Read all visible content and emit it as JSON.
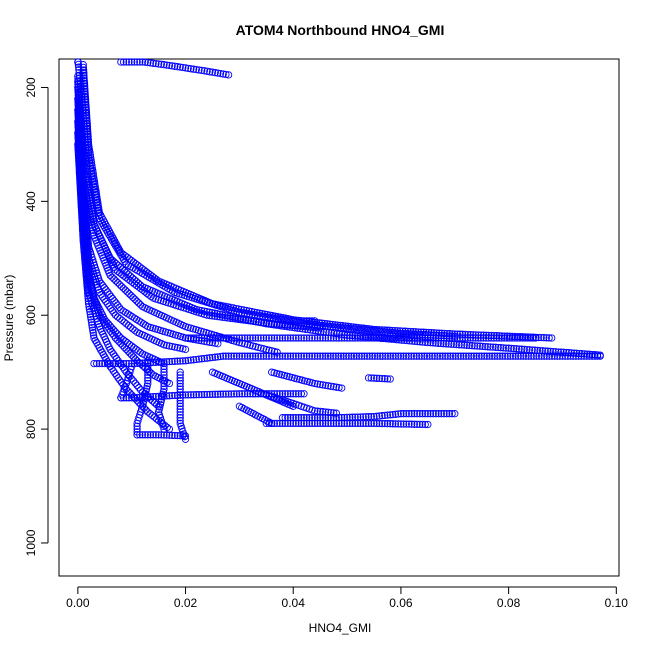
{
  "chart_data": {
    "type": "scatter",
    "title": "ATOM4 Northbound HNO4_GMI",
    "xlabel": "HNO4_GMI",
    "ylabel": "Pressure (mbar)",
    "xlim": [
      -0.0035,
      0.1005
    ],
    "ylim": [
      1058,
      150
    ],
    "y_reversed": true,
    "x_ticks": [
      0.0,
      0.02,
      0.04,
      0.06,
      0.08,
      0.1
    ],
    "x_tick_labels": [
      "0.00",
      "0.02",
      "0.04",
      "0.06",
      "0.08",
      "0.10"
    ],
    "y_ticks": [
      200,
      400,
      600,
      800,
      1000
    ],
    "y_tick_labels": [
      "200",
      "400",
      "600",
      "800",
      "1000"
    ],
    "grid": false,
    "legend": "none",
    "marker": "open-circle",
    "color": "#0000ff",
    "series": [
      {
        "values": [
          [
            0.0,
            150
          ],
          [
            0.001,
            250
          ],
          [
            0.002,
            380
          ],
          [
            0.003,
            440
          ],
          [
            0.006,
            500
          ],
          [
            0.012,
            550
          ],
          [
            0.022,
            590
          ],
          [
            0.035,
            615
          ],
          [
            0.05,
            635
          ],
          [
            0.065,
            648
          ],
          [
            0.08,
            658
          ],
          [
            0.097,
            670
          ]
        ]
      },
      {
        "values": [
          [
            0.001,
            160
          ],
          [
            0.002,
            300
          ],
          [
            0.004,
            420
          ],
          [
            0.008,
            490
          ],
          [
            0.015,
            540
          ],
          [
            0.025,
            580
          ],
          [
            0.04,
            608
          ],
          [
            0.055,
            625
          ],
          [
            0.07,
            633
          ],
          [
            0.088,
            640
          ]
        ]
      },
      {
        "values": [
          [
            0.001,
            170
          ],
          [
            0.002,
            320
          ],
          [
            0.004,
            430
          ],
          [
            0.009,
            510
          ],
          [
            0.018,
            560
          ],
          [
            0.03,
            595
          ],
          [
            0.045,
            618
          ],
          [
            0.06,
            632
          ],
          [
            0.07,
            637
          ]
        ]
      },
      {
        "values": [
          [
            0.0,
            180
          ],
          [
            0.001,
            340
          ],
          [
            0.003,
            440
          ],
          [
            0.007,
            520
          ],
          [
            0.014,
            570
          ],
          [
            0.024,
            600
          ],
          [
            0.036,
            615
          ],
          [
            0.045,
            622
          ]
        ]
      },
      {
        "values": [
          [
            0.0,
            200
          ],
          [
            0.001,
            360
          ],
          [
            0.003,
            460
          ],
          [
            0.006,
            530
          ],
          [
            0.012,
            585
          ],
          [
            0.02,
            620
          ],
          [
            0.03,
            648
          ],
          [
            0.037,
            665
          ]
        ]
      },
      {
        "values": [
          [
            0.0,
            190
          ],
          [
            0.001,
            380
          ],
          [
            0.002,
            480
          ],
          [
            0.004,
            540
          ],
          [
            0.008,
            590
          ],
          [
            0.013,
            620
          ],
          [
            0.02,
            640
          ],
          [
            0.026,
            650
          ]
        ]
      },
      {
        "values": [
          [
            0.0,
            220
          ],
          [
            0.001,
            400
          ],
          [
            0.002,
            500
          ],
          [
            0.004,
            560
          ],
          [
            0.007,
            600
          ],
          [
            0.011,
            630
          ],
          [
            0.016,
            652
          ],
          [
            0.02,
            660
          ]
        ]
      },
      {
        "values": [
          [
            0.0,
            240
          ],
          [
            0.001,
            420
          ],
          [
            0.002,
            520
          ],
          [
            0.003,
            570
          ],
          [
            0.005,
            608
          ],
          [
            0.008,
            640
          ],
          [
            0.012,
            668
          ],
          [
            0.016,
            685
          ]
        ]
      },
      {
        "values": [
          [
            0.0,
            260
          ],
          [
            0.001,
            430
          ],
          [
            0.002,
            540
          ],
          [
            0.004,
            600
          ],
          [
            0.007,
            640
          ],
          [
            0.011,
            680
          ],
          [
            0.014,
            705
          ],
          [
            0.017,
            720
          ]
        ]
      },
      {
        "values": [
          [
            0.0,
            280
          ],
          [
            0.001,
            450
          ],
          [
            0.002,
            560
          ],
          [
            0.004,
            620
          ],
          [
            0.006,
            660
          ],
          [
            0.009,
            700
          ],
          [
            0.012,
            735
          ],
          [
            0.015,
            760
          ]
        ]
      },
      {
        "values": [
          [
            0.0,
            300
          ],
          [
            0.001,
            470
          ],
          [
            0.002,
            580
          ],
          [
            0.003,
            640
          ],
          [
            0.006,
            690
          ],
          [
            0.009,
            730
          ],
          [
            0.013,
            770
          ],
          [
            0.017,
            800
          ]
        ]
      },
      {
        "values": [
          [
            0.008,
            150
          ],
          [
            0.016,
            160
          ],
          [
            0.023,
            170
          ],
          [
            0.028,
            178
          ]
        ]
      },
      {
        "values": [
          [
            0.003,
            685
          ],
          [
            0.01,
            685
          ],
          [
            0.02,
            680
          ],
          [
            0.027,
            672
          ],
          [
            0.035,
            672
          ],
          [
            0.045,
            672
          ],
          [
            0.06,
            672
          ],
          [
            0.075,
            672
          ],
          [
            0.09,
            672
          ],
          [
            0.097,
            672
          ]
        ]
      },
      {
        "values": [
          [
            0.02,
            640
          ],
          [
            0.03,
            640
          ],
          [
            0.04,
            640
          ],
          [
            0.05,
            640
          ],
          [
            0.06,
            640
          ],
          [
            0.07,
            640
          ],
          [
            0.085,
            640
          ]
        ]
      },
      {
        "values": [
          [
            0.042,
            610
          ],
          [
            0.044,
            610
          ]
        ]
      },
      {
        "values": [
          [
            0.008,
            745
          ],
          [
            0.01,
            745
          ],
          [
            0.02,
            740
          ],
          [
            0.03,
            738
          ],
          [
            0.042,
            738
          ]
        ]
      },
      {
        "values": [
          [
            0.011,
            810
          ],
          [
            0.015,
            810
          ],
          [
            0.02,
            812
          ]
        ]
      },
      {
        "values": [
          [
            0.01,
            690
          ],
          [
            0.009,
            720
          ],
          [
            0.008,
            745
          ]
        ]
      },
      {
        "values": [
          [
            0.013,
            680
          ],
          [
            0.013,
            720
          ],
          [
            0.012,
            760
          ],
          [
            0.011,
            790
          ],
          [
            0.011,
            810
          ]
        ]
      },
      {
        "values": [
          [
            0.016,
            690
          ],
          [
            0.016,
            730
          ],
          [
            0.015,
            770
          ],
          [
            0.016,
            800
          ]
        ]
      },
      {
        "values": [
          [
            0.019,
            700
          ],
          [
            0.019,
            750
          ],
          [
            0.019,
            790
          ],
          [
            0.02,
            818
          ]
        ]
      },
      {
        "values": [
          [
            0.035,
            790
          ],
          [
            0.045,
            790
          ],
          [
            0.055,
            790
          ],
          [
            0.065,
            792
          ]
        ]
      },
      {
        "values": [
          [
            0.038,
            780
          ],
          [
            0.048,
            780
          ],
          [
            0.055,
            778
          ],
          [
            0.06,
            773
          ],
          [
            0.07,
            773
          ]
        ]
      },
      {
        "values": [
          [
            0.035,
            740
          ],
          [
            0.04,
            755
          ],
          [
            0.044,
            768
          ],
          [
            0.048,
            772
          ]
        ]
      },
      {
        "values": [
          [
            0.036,
            700
          ],
          [
            0.044,
            720
          ],
          [
            0.049,
            728
          ]
        ]
      },
      {
        "values": [
          [
            0.054,
            710
          ],
          [
            0.058,
            712
          ]
        ]
      },
      {
        "values": [
          [
            0.03,
            760
          ],
          [
            0.033,
            775
          ],
          [
            0.036,
            790
          ]
        ]
      },
      {
        "values": [
          [
            0.025,
            700
          ],
          [
            0.03,
            720
          ],
          [
            0.035,
            740
          ],
          [
            0.04,
            760
          ]
        ]
      }
    ]
  }
}
